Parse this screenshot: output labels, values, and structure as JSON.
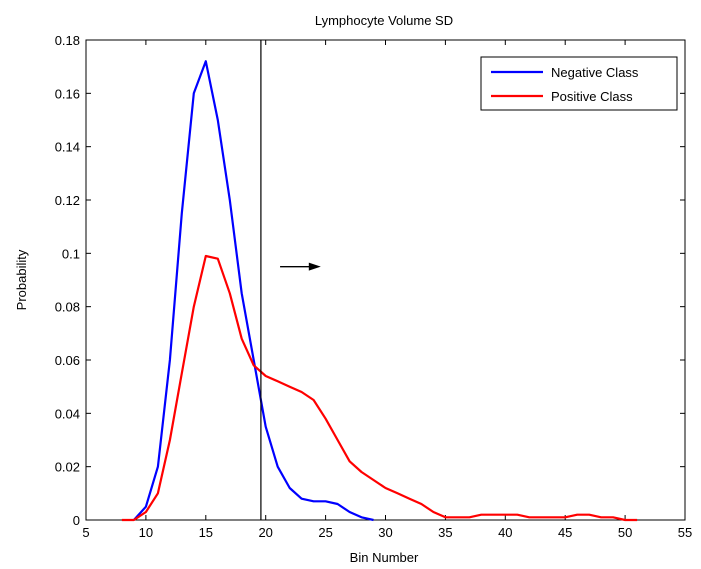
{
  "chart_data": {
    "type": "line",
    "title": "Lymphocyte Volume SD",
    "xlabel": "Bin Number",
    "ylabel": "Probability",
    "xlim": [
      5,
      55
    ],
    "ylim": [
      0,
      0.18
    ],
    "xticks": [
      5,
      10,
      15,
      20,
      25,
      30,
      35,
      40,
      45,
      50,
      55
    ],
    "yticks": [
      0,
      0.02,
      0.04,
      0.06,
      0.08,
      0.1,
      0.12,
      0.14,
      0.16,
      0.18
    ],
    "ytick_labels": [
      "0",
      "0.02",
      "0.04",
      "0.06",
      "0.08",
      "0.1",
      "0.12",
      "0.14",
      "0.16",
      "0.18"
    ],
    "grid": false,
    "legend_position": "top-right",
    "series": [
      {
        "name": "Negative Class",
        "color": "#0000ff",
        "x": [
          9,
          10,
          11,
          12,
          13,
          14,
          15,
          16,
          17,
          18,
          19,
          20,
          21,
          22,
          23,
          24,
          25,
          26,
          27,
          28,
          29
        ],
        "y": [
          0.0,
          0.005,
          0.02,
          0.06,
          0.115,
          0.16,
          0.172,
          0.15,
          0.12,
          0.085,
          0.06,
          0.035,
          0.02,
          0.012,
          0.008,
          0.007,
          0.007,
          0.006,
          0.003,
          0.001,
          0.0
        ]
      },
      {
        "name": "Positive Class",
        "color": "#ff0000",
        "x": [
          8,
          9,
          10,
          11,
          12,
          13,
          14,
          15,
          16,
          17,
          18,
          19,
          20,
          21,
          22,
          23,
          24,
          25,
          26,
          27,
          28,
          29,
          30,
          31,
          32,
          33,
          34,
          35,
          36,
          37,
          38,
          39,
          40,
          41,
          42,
          43,
          44,
          45,
          46,
          47,
          48,
          49,
          50,
          51
        ],
        "y": [
          0.0,
          0.0,
          0.003,
          0.01,
          0.03,
          0.055,
          0.08,
          0.099,
          0.098,
          0.085,
          0.068,
          0.058,
          0.054,
          0.052,
          0.05,
          0.048,
          0.045,
          0.038,
          0.03,
          0.022,
          0.018,
          0.015,
          0.012,
          0.01,
          0.008,
          0.006,
          0.003,
          0.001,
          0.001,
          0.001,
          0.002,
          0.002,
          0.002,
          0.002,
          0.001,
          0.001,
          0.001,
          0.001,
          0.002,
          0.002,
          0.001,
          0.001,
          0.0,
          0.0
        ]
      }
    ],
    "annotations": {
      "vline_x": 19.6,
      "arrow": {
        "x_start": 21.2,
        "x_end": 24.6,
        "y": 0.095
      }
    }
  }
}
